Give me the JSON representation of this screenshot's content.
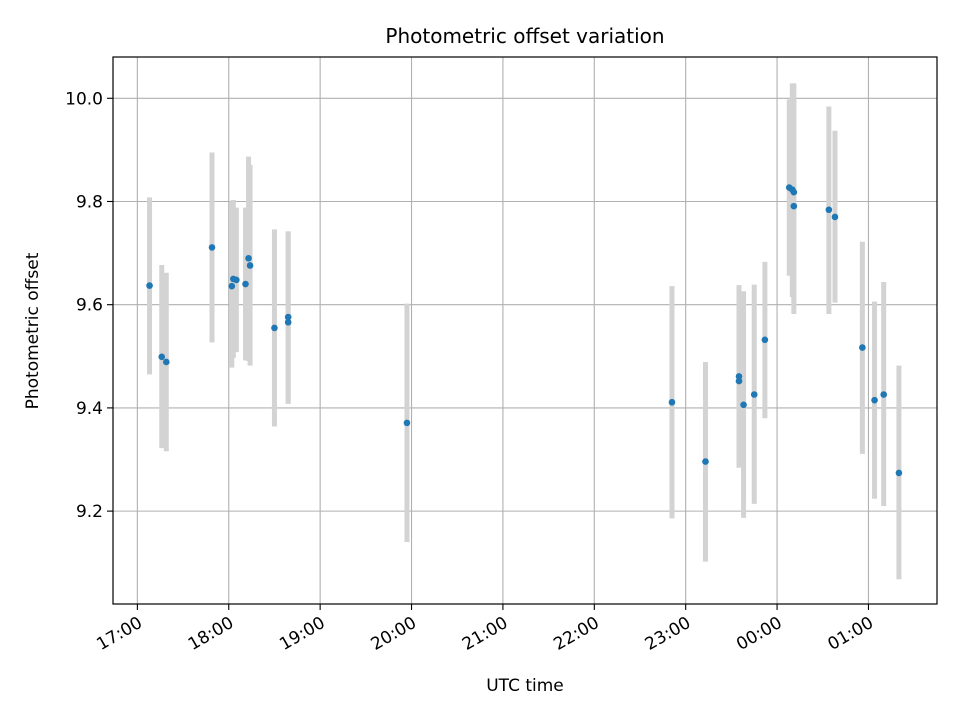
{
  "chart_data": {
    "type": "scatter",
    "title": "Photometric offset variation",
    "xlabel": "UTC time",
    "ylabel": "Photometric offset",
    "x_ticks": [
      "17:00",
      "18:00",
      "19:00",
      "20:00",
      "21:00",
      "22:00",
      "23:00",
      "00:00",
      "01:00"
    ],
    "y_ticks": [
      9.2,
      9.4,
      9.6,
      9.8,
      10.0
    ],
    "xlim": [
      "16:44",
      "01:45"
    ],
    "ylim": [
      9.02,
      10.08
    ],
    "grid": true,
    "marker_color": "#1f77b4",
    "errorbar_color": "#d3d3d3",
    "points": [
      {
        "x": "17:08",
        "y": 9.637,
        "ylo": 9.465,
        "yhi": 9.808
      },
      {
        "x": "17:16",
        "y": 9.499,
        "ylo": 9.322,
        "yhi": 9.677
      },
      {
        "x": "17:19",
        "y": 9.489,
        "ylo": 9.316,
        "yhi": 9.662
      },
      {
        "x": "17:49",
        "y": 9.711,
        "ylo": 9.527,
        "yhi": 9.895
      },
      {
        "x": "18:02",
        "y": 9.636,
        "ylo": 9.478,
        "yhi": 9.8
      },
      {
        "x": "18:03",
        "y": 9.65,
        "ylo": 9.497,
        "yhi": 9.803
      },
      {
        "x": "18:05",
        "y": 9.648,
        "ylo": 9.508,
        "yhi": 9.788
      },
      {
        "x": "18:11",
        "y": 9.64,
        "ylo": 9.492,
        "yhi": 9.788
      },
      {
        "x": "18:13",
        "y": 9.69,
        "ylo": 9.491,
        "yhi": 9.887
      },
      {
        "x": "18:14",
        "y": 9.676,
        "ylo": 9.482,
        "yhi": 9.871
      },
      {
        "x": "18:30",
        "y": 9.555,
        "ylo": 9.364,
        "yhi": 9.746
      },
      {
        "x": "18:39",
        "y": 9.576,
        "ylo": 9.408,
        "yhi": 9.742
      },
      {
        "x": "18:39",
        "y": 9.566,
        "ylo": 9.408,
        "yhi": 9.742
      },
      {
        "x": "19:57",
        "y": 9.371,
        "ylo": 9.14,
        "yhi": 9.602
      },
      {
        "x": "22:51",
        "y": 9.411,
        "ylo": 9.186,
        "yhi": 9.636
      },
      {
        "x": "23:13",
        "y": 9.296,
        "ylo": 9.102,
        "yhi": 9.489
      },
      {
        "x": "23:35",
        "y": 9.452,
        "ylo": 9.284,
        "yhi": 9.621
      },
      {
        "x": "23:35",
        "y": 9.461,
        "ylo": 9.296,
        "yhi": 9.638
      },
      {
        "x": "23:38",
        "y": 9.406,
        "ylo": 9.187,
        "yhi": 9.626
      },
      {
        "x": "23:45",
        "y": 9.426,
        "ylo": 9.214,
        "yhi": 9.639
      },
      {
        "x": "23:52",
        "y": 9.532,
        "ylo": 9.38,
        "yhi": 9.683
      },
      {
        "x": "00:08",
        "y": 9.827,
        "ylo": 9.656,
        "yhi": 9.998
      },
      {
        "x": "00:10",
        "y": 9.823,
        "ylo": 9.615,
        "yhi": 10.029
      },
      {
        "x": "00:11",
        "y": 9.818,
        "ylo": 9.606,
        "yhi": 10.029
      },
      {
        "x": "00:11",
        "y": 9.791,
        "ylo": 9.582,
        "yhi": 10.0
      },
      {
        "x": "00:34",
        "y": 9.784,
        "ylo": 9.582,
        "yhi": 9.984
      },
      {
        "x": "00:38",
        "y": 9.77,
        "ylo": 9.604,
        "yhi": 9.937
      },
      {
        "x": "00:56",
        "y": 9.517,
        "ylo": 9.311,
        "yhi": 9.722
      },
      {
        "x": "01:04",
        "y": 9.415,
        "ylo": 9.224,
        "yhi": 9.606
      },
      {
        "x": "01:10",
        "y": 9.426,
        "ylo": 9.21,
        "yhi": 9.644
      },
      {
        "x": "01:20",
        "y": 9.274,
        "ylo": 9.068,
        "yhi": 9.482
      }
    ]
  }
}
